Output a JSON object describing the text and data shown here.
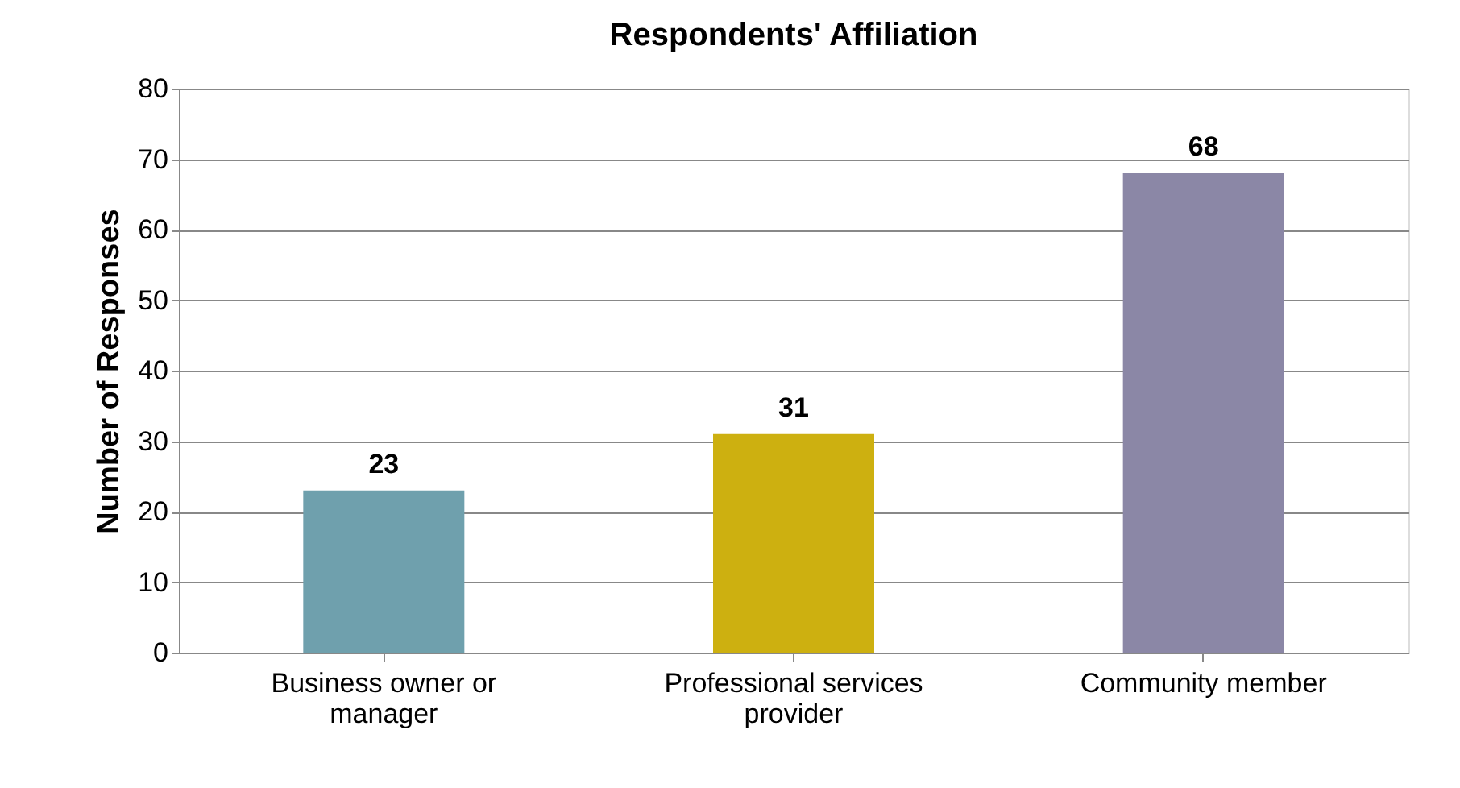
{
  "chart_data": {
    "type": "bar",
    "title": "Respondents' Affiliation",
    "ylabel": "Number of Responses",
    "categories": [
      "Business owner or manager",
      "Professional services provider",
      "Community member"
    ],
    "values": [
      23,
      31,
      68
    ],
    "colors": [
      "#6fa0ad",
      "#cdb010",
      "#8b87a6"
    ],
    "ylim": [
      0,
      80
    ],
    "yticks": [
      0,
      10,
      20,
      30,
      40,
      50,
      60,
      70,
      80
    ],
    "grid": "y",
    "data_labels": true
  }
}
